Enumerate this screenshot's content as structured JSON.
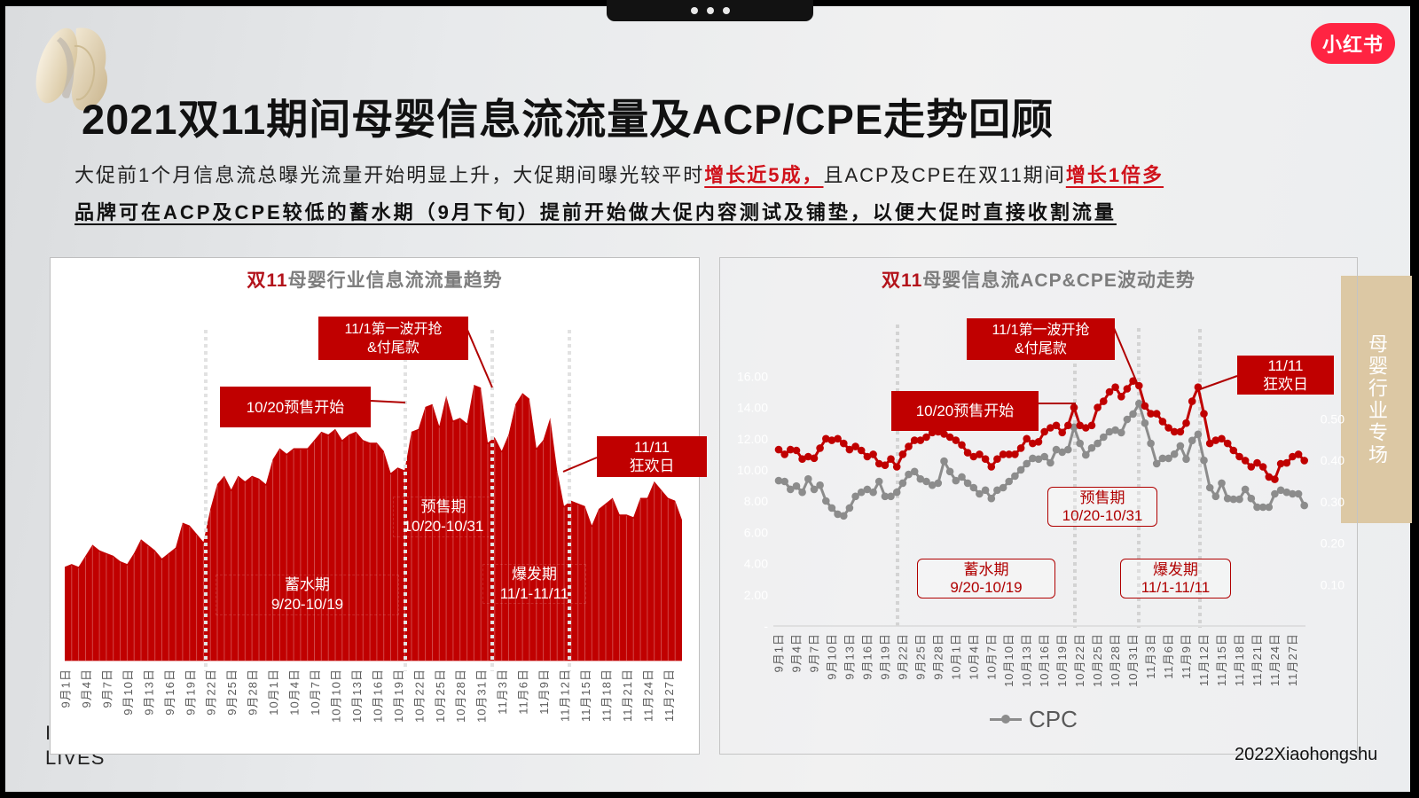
{
  "window": {
    "top_pill_dots": [
      "dot",
      "dot",
      "dot"
    ]
  },
  "header": {
    "title": "2021双11期间母婴信息流流量及ACP/CPE走势回顾",
    "logo_text": "小红书"
  },
  "summary": {
    "line1": {
      "part1": "大促前1个月信息流总曝光流量开始明显上升，大促期间曝光较平时",
      "highlight1": "增长近5成，",
      "part2": "且ACP及CPE在双11期间",
      "highlight2": "增长1倍多"
    },
    "line2": "品牌可在ACP及CPE较低的蓄水期（9月下旬）提前开始做大促内容测试及铺垫，以便大促时直接收割流量"
  },
  "side_tab": {
    "label": "母婴行业专场"
  },
  "footer": {
    "left_brand_line1": "I",
    "left_brand_line2": "LIVES",
    "copyright": "2022Xiaohongshu"
  },
  "colors": {
    "brand_red": "#ff2442",
    "chart_red": "#c00000",
    "highlight_red": "#d0121b",
    "cpc_gray": "#8c8c8c",
    "side_tab_beige": "#dcc8a4"
  },
  "chart_data": [
    {
      "type": "area",
      "title": "双11母婴行业信息流流量趋势",
      "title_highlight": "双11",
      "title_rest": "母婴行业信息流流量趋势",
      "xlabel": "",
      "ylabel": "",
      "y_axis": "not shown; values are relative (peak = 100)",
      "grid": false,
      "x_start": "9月1日",
      "x_step": "1 day",
      "x_tick_labels": [
        "9月1日",
        "9月4日",
        "9月7日",
        "9月10日",
        "9月13日",
        "9月16日",
        "9月19日",
        "9月22日",
        "9月25日",
        "9月28日",
        "10月1日",
        "10月4日",
        "10月7日",
        "10月10日",
        "10月13日",
        "10月16日",
        "10月19日",
        "10月22日",
        "10月25日",
        "10月28日",
        "10月31日",
        "11月3日",
        "11月6日",
        "11月9日",
        "11月12日",
        "11月15日",
        "11月18日",
        "11月21日",
        "11月24日",
        "11月27日"
      ],
      "color": "#c00000",
      "values": [
        34,
        35,
        34,
        38,
        42,
        40,
        39,
        38,
        36,
        35,
        39,
        44,
        42,
        40,
        37,
        39,
        41,
        50,
        49,
        46,
        43,
        55,
        64,
        67,
        62,
        67,
        65,
        67,
        66,
        64,
        73,
        77,
        75,
        77,
        77,
        77,
        80,
        83,
        82,
        84,
        80,
        82,
        83,
        80,
        79,
        79,
        76,
        68,
        70,
        69,
        83,
        84,
        92,
        93,
        85,
        96,
        87,
        88,
        86,
        100,
        99,
        79,
        81,
        76,
        82,
        93,
        97,
        95,
        77,
        80,
        88,
        69,
        56,
        58,
        57,
        56,
        49,
        55,
        57,
        59,
        53,
        53,
        52,
        59,
        59,
        65,
        62,
        59,
        58,
        51
      ],
      "annotations": [
        {
          "lines": [
            "10/20预售开始"
          ]
        },
        {
          "lines": [
            "11/1第一波开抢",
            "&付尾款"
          ]
        },
        {
          "lines": [
            "11/11",
            "狂欢日"
          ]
        }
      ],
      "periods": [
        {
          "name": "蓄水期",
          "range": "9/20-10/19"
        },
        {
          "name": "预售期",
          "range": "10/20-10/31"
        },
        {
          "name": "爆发期",
          "range": "11/1-11/11"
        }
      ]
    },
    {
      "type": "line",
      "title": "双11母婴信息流ACP&CPE波动走势",
      "title_highlight": "双11",
      "title_rest": "母婴信息流ACP&CPE波动走势",
      "xlabel": "",
      "ylabel": "",
      "grid": false,
      "x_start": "9月1日",
      "x_step": "1 day",
      "x_tick_labels": [
        "9月1日",
        "9月4日",
        "9月7日",
        "9月10日",
        "9月13日",
        "9月16日",
        "9月19日",
        "9月22日",
        "9月25日",
        "9月28日",
        "10月1日",
        "10月4日",
        "10月7日",
        "10月10日",
        "10月13日",
        "10月16日",
        "10月19日",
        "10月22日",
        "10月25日",
        "10月28日",
        "10月31日",
        "11月3日",
        "11月6日",
        "11月9日",
        "11月12日",
        "11月15日",
        "11月18日",
        "11月21日",
        "11月24日",
        "11月27日"
      ],
      "y_left_ticks": [
        "16.00",
        "14.00",
        "12.00",
        "10.00",
        "8.00",
        "6.00",
        "4.00",
        "2.00",
        "-"
      ],
      "y_left_range": [
        0,
        16
      ],
      "y_right_ticks": [
        "0.50",
        "0.40",
        "0.30",
        "0.20",
        "0.10"
      ],
      "y_right_range": [
        0,
        0.6
      ],
      "series": [
        {
          "name": "",
          "axis": "left",
          "color": "#c00000",
          "values": [
            11.3,
            11.0,
            11.3,
            11.25,
            10.7,
            10.85,
            10.75,
            11.4,
            12.0,
            11.9,
            12.0,
            11.7,
            11.3,
            11.5,
            11.25,
            10.85,
            11.0,
            10.4,
            10.3,
            10.7,
            10.2,
            11.0,
            11.5,
            11.9,
            11.9,
            12.1,
            12.4,
            12.45,
            12.3,
            12.1,
            11.9,
            11.6,
            11.1,
            10.85,
            11.0,
            10.7,
            10.2,
            10.7,
            11.0,
            11.0,
            11.0,
            11.4,
            12.0,
            11.7,
            11.8,
            12.45,
            12.7,
            12.85,
            12.4,
            12.85,
            14.0,
            12.85,
            12.7,
            12.85,
            14.0,
            14.4,
            15.0,
            15.3,
            14.7,
            15.2,
            15.7,
            15.4,
            14.1,
            13.6,
            13.6,
            13.1,
            12.7,
            12.45,
            12.45,
            13.0,
            14.4,
            15.3,
            13.6,
            11.7,
            11.9,
            12.0,
            11.7,
            11.25,
            10.85,
            10.6,
            10.2,
            10.45,
            10.2,
            9.55,
            9.4,
            10.4,
            10.45,
            10.85,
            11.0,
            10.6
          ]
        },
        {
          "name": "CPC",
          "axis": "right",
          "color": "#8c8c8c",
          "values": [
            0.351,
            0.349,
            0.33,
            0.338,
            0.323,
            0.355,
            0.33,
            0.34,
            0.302,
            0.285,
            0.27,
            0.266,
            0.285,
            0.313,
            0.323,
            0.33,
            0.323,
            0.349,
            0.313,
            0.313,
            0.323,
            0.345,
            0.366,
            0.373,
            0.355,
            0.349,
            0.34,
            0.345,
            0.398,
            0.373,
            0.351,
            0.36,
            0.345,
            0.334,
            0.319,
            0.328,
            0.308,
            0.328,
            0.334,
            0.349,
            0.362,
            0.377,
            0.392,
            0.405,
            0.403,
            0.409,
            0.394,
            0.426,
            0.42,
            0.426,
            0.48,
            0.441,
            0.413,
            0.43,
            0.441,
            0.456,
            0.469,
            0.473,
            0.467,
            0.499,
            0.512,
            0.537,
            0.49,
            0.441,
            0.392,
            0.405,
            0.405,
            0.415,
            0.435,
            0.403,
            0.448,
            0.463,
            0.4,
            0.334,
            0.313,
            0.345,
            0.308,
            0.306,
            0.306,
            0.33,
            0.308,
            0.287,
            0.287,
            0.287,
            0.319,
            0.328,
            0.323,
            0.319,
            0.319,
            0.291
          ]
        }
      ],
      "legend": [
        {
          "label": "CPC",
          "color": "#8c8c8c"
        }
      ],
      "legend_position": "bottom",
      "annotations": [
        {
          "lines": [
            "11/1第一波开抢",
            "&付尾款"
          ]
        },
        {
          "lines": [
            "10/20预售开始"
          ]
        },
        {
          "lines": [
            "11/11",
            "狂欢日"
          ]
        }
      ],
      "periods": [
        {
          "name": "预售期",
          "range": "10/20-10/31"
        },
        {
          "name": "蓄水期",
          "range": "9/20-10/19"
        },
        {
          "name": "爆发期",
          "range": "11/1-11/11"
        }
      ]
    }
  ]
}
